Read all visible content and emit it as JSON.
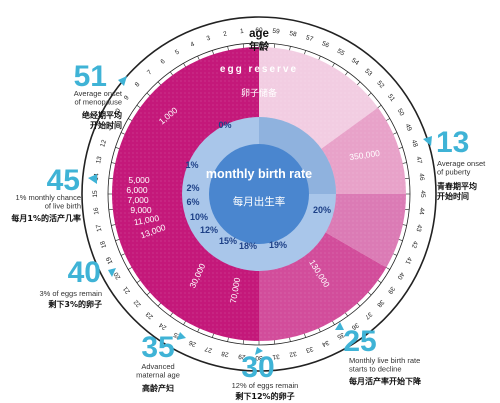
{
  "chart_data": {
    "type": "radial",
    "age_axis": {
      "title": "age",
      "title_zh": "年龄",
      "ticks": [
        60,
        59,
        58,
        57,
        56,
        55,
        54,
        53,
        52,
        51,
        50,
        49,
        48,
        47,
        46,
        45,
        44,
        43,
        42,
        41,
        40,
        39,
        38,
        37,
        36,
        35,
        34,
        33,
        32,
        31,
        30,
        29,
        28,
        27,
        26,
        25,
        24,
        23,
        22,
        21,
        20,
        19,
        18,
        17,
        16,
        15,
        14,
        13,
        12,
        11,
        10,
        9,
        8,
        7,
        6,
        5,
        4,
        3,
        2,
        1
      ],
      "clockwise": true
    },
    "egg_reserve": {
      "title": "egg reserve",
      "title_zh": "卵子储备",
      "labels": [
        "1,000",
        "5,000",
        "6,000",
        "7,000",
        "9,000",
        "11,000",
        "13,000",
        "30,000",
        "70,000",
        "130,000",
        "350,000"
      ]
    },
    "monthly_birth_rate": {
      "title": "monthly birth rate",
      "title_zh": "每月出生率",
      "labels": [
        "0%",
        "1%",
        "2%",
        "6%",
        "10%",
        "12%",
        "15%",
        "18%",
        "19%",
        "20%"
      ]
    },
    "milestones": [
      {
        "age": "51",
        "en": "Average onset of menopause",
        "zh": "绝经期平均开始时间"
      },
      {
        "age": "45",
        "en": "1% monthly chance of live birth",
        "zh": "每月1%的活产几率"
      },
      {
        "age": "40",
        "en": "3% of eggs remain",
        "zh": "剩下3%的卵子"
      },
      {
        "age": "35",
        "en": "Advanced maternal age",
        "zh": "高龄产妇"
      },
      {
        "age": "30",
        "en": "12% of eggs remain",
        "zh": "剩下12%的卵子"
      },
      {
        "age": "25",
        "en": "Monthly live birth rate starts to decline",
        "zh": "每月活产率开始下降"
      },
      {
        "age": "13",
        "en": "Average onset of puberty",
        "zh": "青春期平均开始时间"
      }
    ],
    "colors": {
      "accent": "#3fb3d6",
      "magenta_dark": "#c4187a",
      "magenta_light": "#e8a2c9",
      "pink_pale": "#f2cde2",
      "rate_ring": "#a9c6ea",
      "center": "#4a86cf"
    }
  }
}
